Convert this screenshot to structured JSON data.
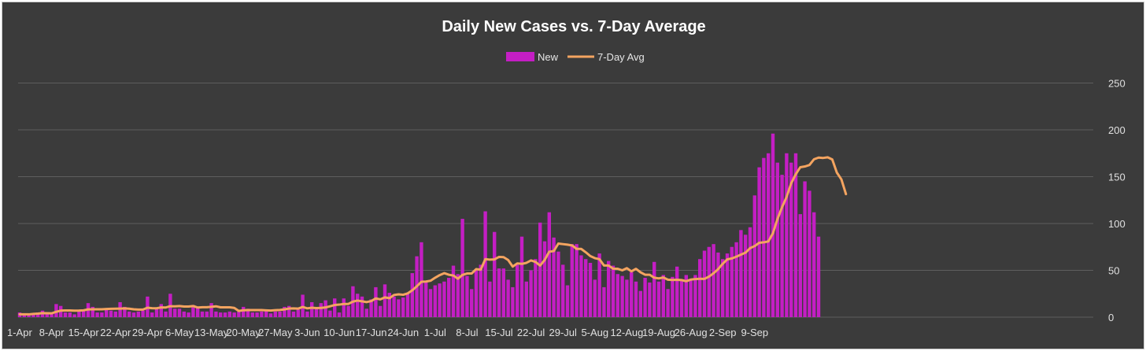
{
  "chart_data": {
    "type": "bar",
    "title": "Daily New Cases vs. 7-Day Average",
    "legend_position": "top-center",
    "grid": true,
    "y_axis_side": "right",
    "ylim": [
      0,
      250
    ],
    "y_ticks": [
      "0",
      "50",
      "100",
      "150",
      "200",
      "250"
    ],
    "x_tick_labels": [
      "1-Apr",
      "8-Apr",
      "15-Apr",
      "22-Apr",
      "29-Apr",
      "6-May",
      "13-May",
      "20-May",
      "27-May",
      "3-Jun",
      "10-Jun",
      "17-Jun",
      "24-Jun",
      "1-Jul",
      "8-Jul",
      "15-Jul",
      "22-Jul",
      "29-Jul",
      "5-Aug",
      "12-Aug",
      "19-Aug",
      "26-Aug",
      "2-Sep",
      "9-Sep"
    ],
    "series": [
      {
        "name": "New",
        "type": "bar",
        "color": "#c41ec4",
        "values": [
          5,
          3,
          3,
          4,
          5,
          7,
          3,
          4,
          14,
          12,
          5,
          5,
          3,
          6,
          8,
          15,
          11,
          5,
          5,
          8,
          7,
          6,
          16,
          11,
          6,
          5,
          6,
          7,
          22,
          5,
          10,
          14,
          6,
          25,
          9,
          9,
          6,
          5,
          13,
          11,
          6,
          6,
          15,
          6,
          5,
          5,
          6,
          5,
          6,
          11,
          9,
          5,
          5,
          6,
          7,
          4,
          6,
          6,
          11,
          12,
          6,
          8,
          24,
          6,
          16,
          10,
          15,
          18,
          7,
          20,
          5,
          20,
          12,
          33,
          25,
          22,
          9,
          19,
          32,
          12,
          35,
          26,
          22,
          19,
          21,
          25,
          47,
          65,
          80,
          38,
          30,
          34,
          36,
          38,
          42,
          55,
          46,
          105,
          44,
          30,
          50,
          56,
          113,
          38,
          91,
          52,
          52,
          40,
          32,
          56,
          86,
          38,
          50,
          62,
          101,
          81,
          112,
          85,
          70,
          56,
          34,
          78,
          78,
          66,
          62,
          58,
          40,
          68,
          32,
          60,
          55,
          46,
          44,
          40,
          48,
          38,
          28,
          42,
          37,
          59,
          38,
          45,
          30,
          43,
          54,
          40,
          45,
          40,
          45,
          62,
          71,
          75,
          78,
          69,
          62,
          68,
          75,
          80,
          93,
          88,
          96,
          130,
          160,
          170,
          175,
          196,
          165,
          152,
          175,
          165,
          175,
          110,
          145,
          135,
          112,
          86
        ]
      },
      {
        "name": "7-Day Avg",
        "type": "line",
        "color": "#f4a460",
        "values": [
          3.0,
          3.0,
          3.0,
          3.5,
          3.8,
          4.3,
          4.2,
          4.1,
          5.7,
          7.0,
          7.1,
          7.1,
          6.9,
          7.0,
          7.3,
          8.3,
          8.4,
          8.4,
          8.4,
          8.7,
          8.9,
          9.0,
          9.1,
          9.3,
          9.0,
          8.4,
          8.1,
          8.1,
          10.1,
          9.6,
          9.5,
          10.4,
          10.3,
          11.7,
          11.6,
          11.9,
          11.3,
          11.3,
          11.9,
          10.3,
          10.6,
          10.6,
          11.0,
          11.6,
          10.5,
          10.5,
          10.5,
          9.9,
          6.6,
          7.4,
          7.6,
          7.6,
          7.6,
          7.6,
          7.3,
          7.0,
          7.5,
          7.7,
          8.3,
          9.2,
          9.3,
          9.1,
          10.9,
          9.4,
          10.1,
          9.7,
          9.9,
          10.4,
          11.6,
          13.0,
          13.4,
          14.1,
          14.1,
          16.6,
          17.7,
          16.9,
          16.1,
          17.2,
          20.0,
          19.0,
          21.1,
          20.3,
          23.7,
          24.4,
          23.9,
          25.4,
          28.7,
          33.0,
          37.8,
          38.0,
          38.9,
          42.1,
          44.9,
          47.0,
          45.3,
          44.5,
          41.1,
          45.1,
          46.6,
          46.6,
          51.3,
          50.7,
          62.0,
          61.4,
          61.7,
          64.3,
          64.1,
          61.0,
          54.0,
          57.4,
          56.9,
          58.0,
          60.6,
          59.0,
          55.1,
          61.1,
          69.9,
          70.6,
          78.6,
          78.0,
          77.4,
          76.6,
          72.9,
          72.9,
          69.3,
          65.2,
          63.0,
          61.9,
          55.1,
          55.1,
          51.8,
          51.7,
          50.0,
          52.3,
          48.9,
          51.6,
          47.9,
          45.3,
          45.3,
          42.1,
          41.4,
          42.3,
          40.0,
          39.7,
          39.9,
          39.6,
          38.4,
          40.1,
          40.7,
          41.0,
          40.9,
          43.3,
          46.9,
          51.3,
          57.0,
          61.7,
          62.7,
          64.6,
          66.8,
          68.9,
          73.7,
          75.9,
          79.4,
          79.9,
          80.9,
          89.6,
          104.9,
          117.4,
          128.4,
          142.9,
          152.6,
          160.1,
          160.9,
          162.4,
          168.6,
          170.4,
          170.0,
          170.7,
          168.4,
          154.4,
          147.1,
          131.4
        ]
      }
    ]
  }
}
